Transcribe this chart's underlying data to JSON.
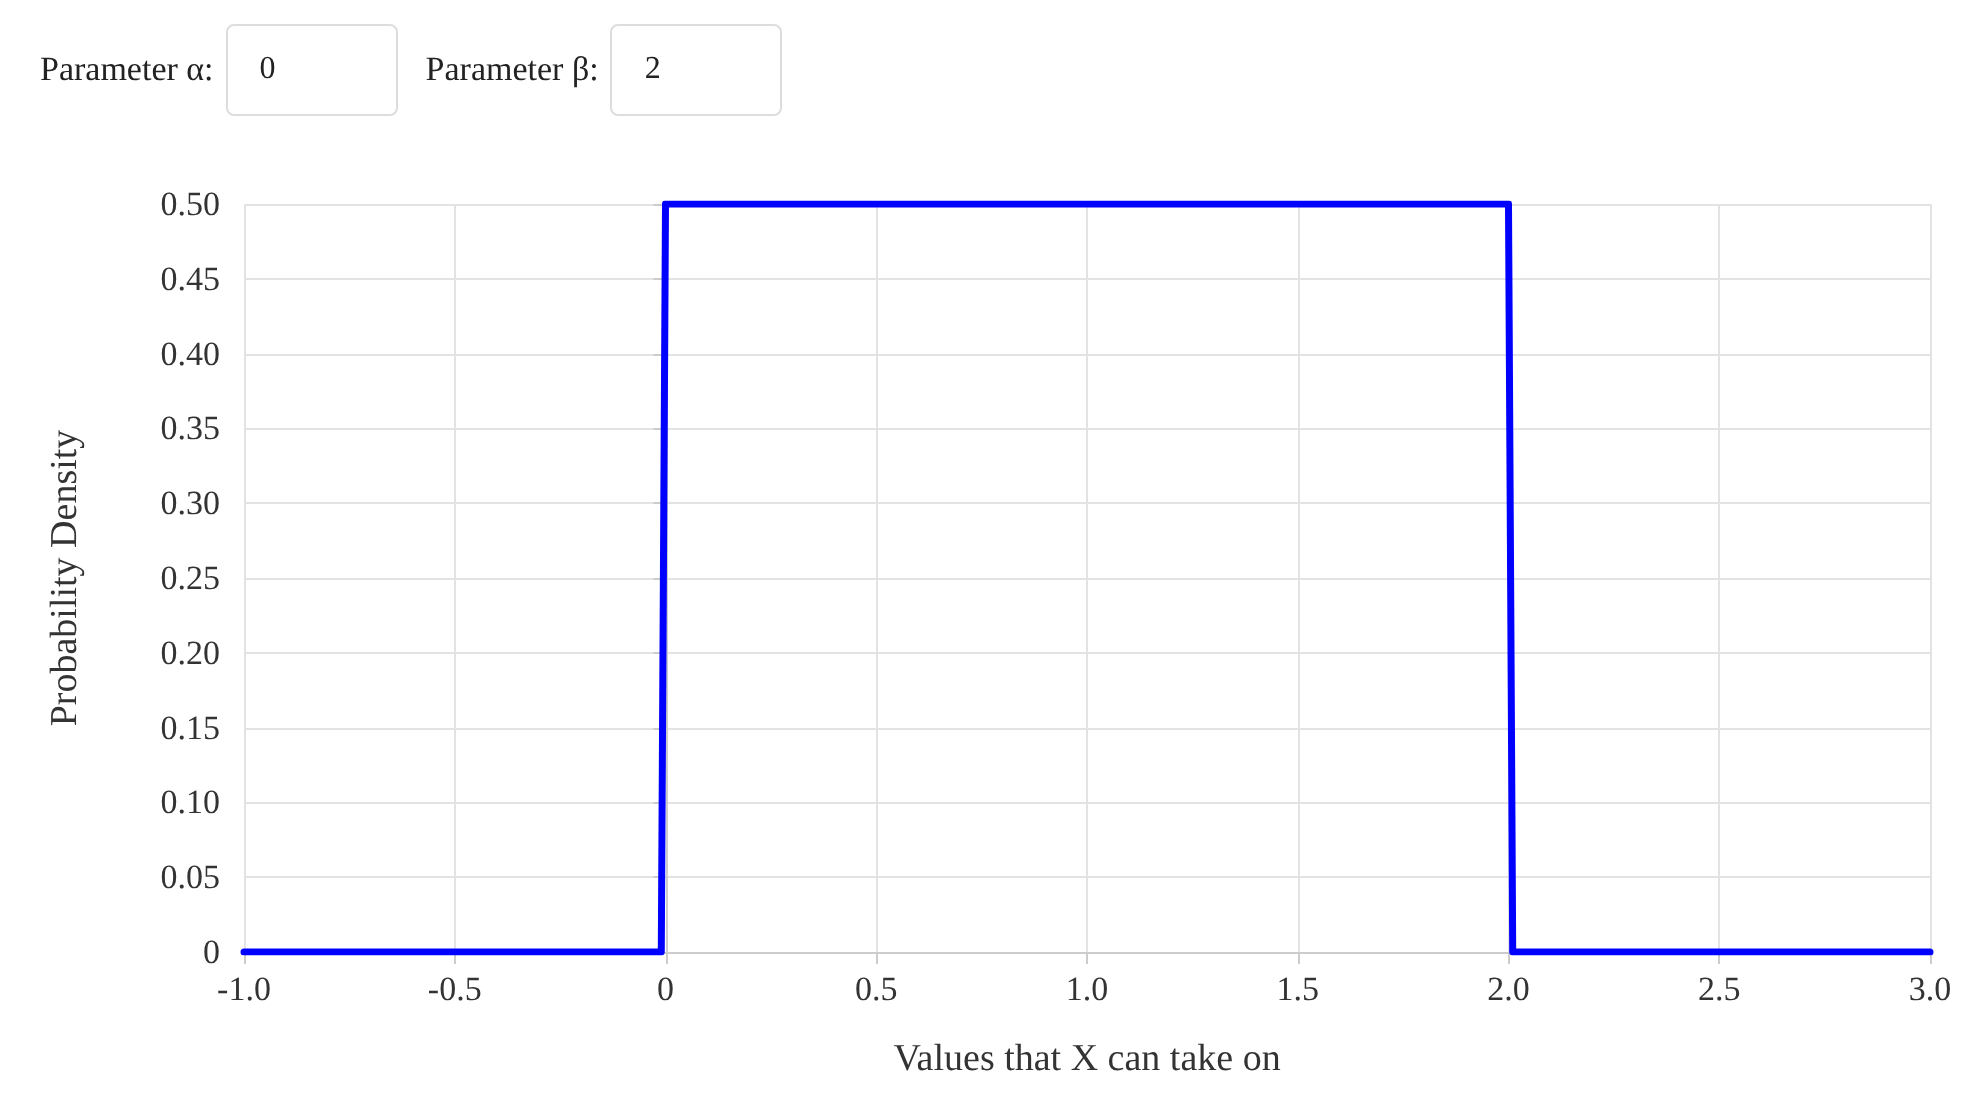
{
  "chart_data": {
    "type": "line",
    "xlabel": "Values that X can take on",
    "ylabel": "Probability Density",
    "annotations": [
      "Parameter α:",
      "0",
      "Parameter β:",
      "2"
    ],
    "x": [
      -1,
      -0.01,
      0,
      2,
      2.01,
      3
    ],
    "series": [
      {
        "color": "#0000ff",
        "values": [
          0,
          0,
          0.5,
          0.5,
          0,
          0
        ]
      }
    ],
    "xlim": [
      -1,
      3
    ],
    "xticks": [
      {
        "value": -1,
        "label": "-1.0"
      },
      -0.5,
      0,
      0.5,
      {
        "value": 1,
        "label": "1.0"
      },
      1.5,
      {
        "value": 2,
        "label": "2.0"
      },
      2.5,
      {
        "value": 3,
        "label": "3.0"
      }
    ],
    "ylim": [
      0,
      0.5
    ],
    "yticks": [
      0,
      0.05,
      {
        "value": 0.1,
        "label": "0.10"
      },
      0.15,
      {
        "value": 0.2,
        "label": "0.20"
      },
      0.25,
      {
        "value": 0.3,
        "label": "0.30"
      },
      0.35,
      {
        "value": 0.4,
        "label": "0.40"
      },
      0.45,
      {
        "value": 0.5,
        "label": "0.50"
      }
    ],
    "grid": true,
    "marker": "none",
    "line_style": "solid"
  }
}
